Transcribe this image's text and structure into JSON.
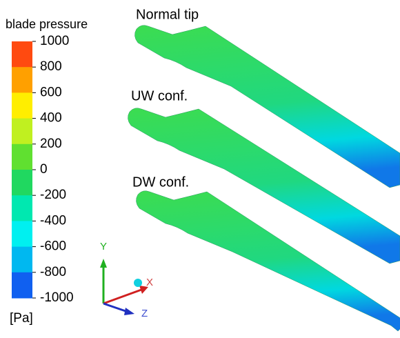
{
  "legend": {
    "title": "blade pressure",
    "unit": "[Pa]",
    "ticks": [
      1000,
      800,
      600,
      400,
      200,
      0,
      -200,
      -400,
      -600,
      -800,
      -1000
    ],
    "colors": [
      "#ff4a10",
      "#ffa000",
      "#ffee00",
      "#c0f020",
      "#60e030",
      "#20d860",
      "#00e8b0",
      "#00f0f0",
      "#00b8f0",
      "#1060f0"
    ]
  },
  "blades": [
    {
      "label": "Normal tip"
    },
    {
      "label": "UW conf."
    },
    {
      "label": "DW conf."
    }
  ],
  "axes": {
    "y": "Y",
    "x": "X",
    "z": "Z"
  }
}
